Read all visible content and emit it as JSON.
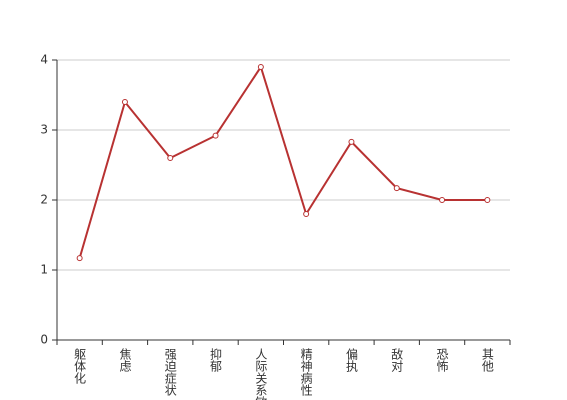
{
  "chart_data": {
    "type": "line",
    "categories": [
      "躯体化",
      "焦虑",
      "强迫症状",
      "抑郁",
      "人际关系敏感",
      "精神病性",
      "偏执",
      "敌对",
      "恐怖",
      "其他"
    ],
    "values": [
      1.17,
      3.4,
      2.6,
      2.92,
      3.9,
      1.8,
      2.83,
      2.17,
      2.0,
      2.0
    ],
    "color": "#b83232",
    "ylim": [
      0,
      4
    ],
    "yticks": [
      0,
      1,
      2,
      3,
      4
    ],
    "grid": true
  }
}
